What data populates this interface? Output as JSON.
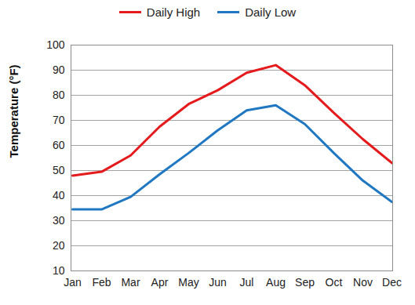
{
  "chart_data": {
    "type": "line",
    "ylabel": "Temperature (°F)",
    "categories": [
      "Jan",
      "Feb",
      "Mar",
      "Apr",
      "May",
      "Jun",
      "Jul",
      "Aug",
      "Sep",
      "Oct",
      "Nov",
      "Dec"
    ],
    "series": [
      {
        "name": "Daily High",
        "color": "#e41a1c",
        "values": [
          48,
          49.5,
          56,
          67.5,
          76.5,
          82,
          89,
          92,
          84,
          73,
          62.5,
          53
        ]
      },
      {
        "name": "Daily Low",
        "color": "#1f78c1",
        "values": [
          34.5,
          34.5,
          39.5,
          48.5,
          57,
          66,
          74,
          76,
          68.5,
          57,
          46,
          37.5
        ]
      }
    ],
    "ylim": [
      10,
      100
    ],
    "yticks": [
      10,
      20,
      30,
      40,
      50,
      60,
      70,
      80,
      90,
      100
    ],
    "grid": true,
    "legend": "top"
  }
}
